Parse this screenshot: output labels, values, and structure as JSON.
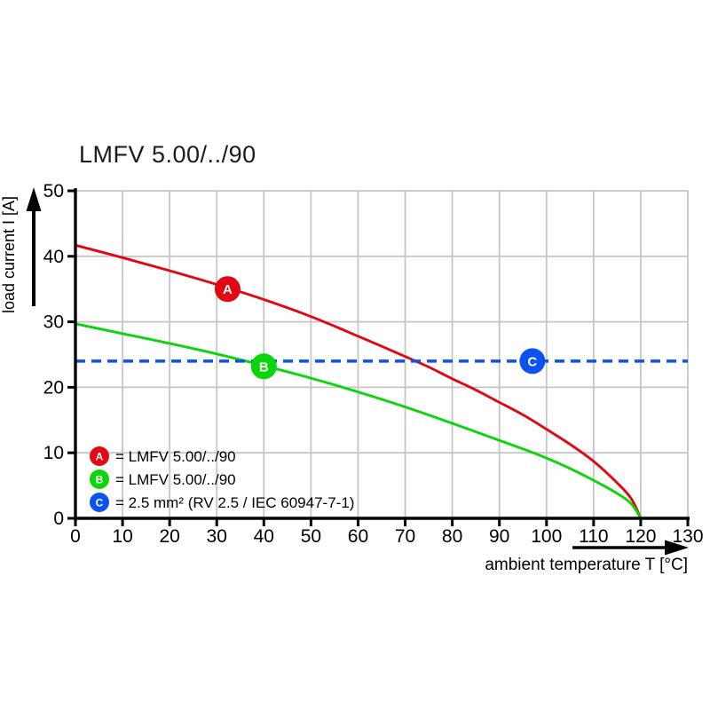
{
  "title": "LMFV 5.00/../90",
  "chart_data": {
    "type": "line",
    "title": "LMFV 5.00/../90",
    "xlabel": "ambient temperature T [°C]",
    "ylabel": "load current I [A]",
    "xlim": [
      0,
      130
    ],
    "ylim": [
      0,
      50
    ],
    "x_ticks": [
      0,
      10,
      20,
      30,
      40,
      50,
      60,
      70,
      80,
      90,
      100,
      110,
      120,
      130
    ],
    "y_ticks": [
      0,
      10,
      20,
      30,
      40,
      50
    ],
    "grid": true,
    "grid_color": "#c6c6c6",
    "axis_color": "#000000",
    "series": [
      {
        "name": "A",
        "label": "LMFV 5.00/../90",
        "color": "#e30613",
        "style": "solid",
        "points": [
          [
            0,
            41.7
          ],
          [
            10,
            39.8
          ],
          [
            20,
            37.8
          ],
          [
            30,
            35.7
          ],
          [
            40,
            33.4
          ],
          [
            50,
            30.8
          ],
          [
            60,
            27.8
          ],
          [
            70,
            24.7
          ],
          [
            75,
            23.1
          ],
          [
            80,
            21.3
          ],
          [
            85,
            19.6
          ],
          [
            90,
            17.7
          ],
          [
            95,
            15.8
          ],
          [
            100,
            13.6
          ],
          [
            105,
            11.3
          ],
          [
            110,
            8.7
          ],
          [
            115,
            5.4
          ],
          [
            118,
            3.0
          ],
          [
            120,
            0
          ]
        ],
        "marker": {
          "letter": "A",
          "x": 32.3,
          "y": 35
        }
      },
      {
        "name": "B",
        "label": "LMFV 5.00/../90",
        "color": "#0bd60b",
        "style": "solid",
        "points": [
          [
            0,
            29.7
          ],
          [
            10,
            28.2
          ],
          [
            20,
            26.7
          ],
          [
            30,
            25.1
          ],
          [
            40,
            23.3
          ],
          [
            50,
            21.4
          ],
          [
            60,
            19.3
          ],
          [
            70,
            17.0
          ],
          [
            80,
            14.5
          ],
          [
            90,
            11.9
          ],
          [
            95,
            10.6
          ],
          [
            100,
            9.2
          ],
          [
            105,
            7.6
          ],
          [
            110,
            5.8
          ],
          [
            115,
            3.8
          ],
          [
            118,
            2.2
          ],
          [
            120,
            0
          ]
        ],
        "marker": {
          "letter": "B",
          "x": 40,
          "y": 23.2
        }
      },
      {
        "name": "C",
        "label": "2.5 mm² (RV 2.5 / IEC 60947-7-1)",
        "color": "#0b52ee",
        "style": "dashed",
        "points": [
          [
            0,
            24
          ],
          [
            130,
            24
          ]
        ],
        "marker": {
          "letter": "C",
          "x": 97,
          "y": 24
        }
      }
    ],
    "legend": {
      "position": "bottom-left-inside",
      "items": [
        {
          "letter": "A",
          "color": "#e30613",
          "text": "= LMFV 5.00/../90"
        },
        {
          "letter": "B",
          "color": "#0bd60b",
          "text": "= LMFV 5.00/../90"
        },
        {
          "letter": "C",
          "color": "#0b52ee",
          "text": "= 2.5 mm² (RV 2.5 / IEC 60947-7-1)"
        }
      ]
    }
  }
}
